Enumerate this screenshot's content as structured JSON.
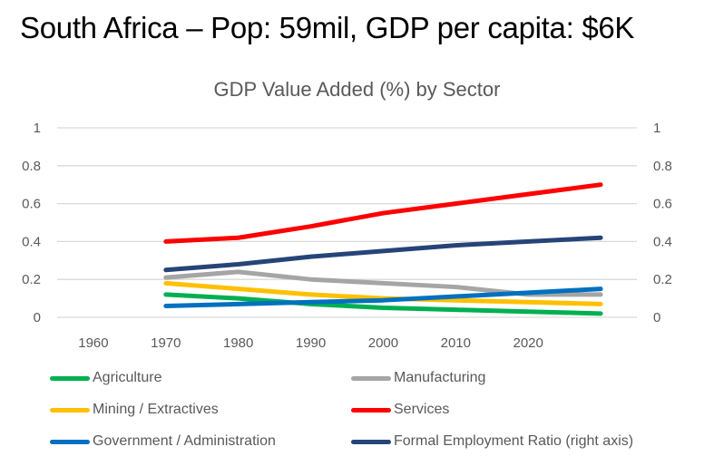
{
  "slide": {
    "title": "South Africa – Pop: 59mil, GDP per capita:  $6K"
  },
  "colors": {
    "text": "#595959",
    "grid": "#D9D9D9"
  },
  "chart_data": {
    "type": "line",
    "title": "GDP Value Added (%) by Sector",
    "xlabel": "",
    "ylabel": "",
    "categories": [
      "1960",
      "1970",
      "1980",
      "1990",
      "2000",
      "2010",
      "2020",
      ""
    ],
    "ylim": [
      0,
      1
    ],
    "y_ticks": [
      "0",
      "0.2",
      "0.4",
      "0.6",
      "0.8",
      "1"
    ],
    "y2lim": [
      0,
      1
    ],
    "y2_ticks": [
      "0",
      "0.2",
      "0.4",
      "0.6",
      "0.8",
      "1"
    ],
    "grid": true,
    "legend_position": "bottom",
    "series": [
      {
        "name": "Agriculture",
        "color": "#00B050",
        "axis": "left",
        "values": [
          null,
          0.12,
          0.1,
          0.07,
          0.05,
          0.04,
          0.03,
          0.02
        ]
      },
      {
        "name": "Manufacturing",
        "color": "#A5A5A5",
        "axis": "left",
        "values": [
          null,
          0.21,
          0.24,
          0.2,
          0.18,
          0.16,
          0.12,
          0.12
        ]
      },
      {
        "name": "Mining / Extractives",
        "color": "#FFC000",
        "axis": "left",
        "values": [
          null,
          0.18,
          0.15,
          0.12,
          0.1,
          0.09,
          0.08,
          0.07
        ]
      },
      {
        "name": "Services",
        "color": "#FF0000",
        "axis": "left",
        "values": [
          null,
          0.4,
          0.42,
          0.48,
          0.55,
          0.6,
          0.65,
          0.7
        ]
      },
      {
        "name": "Government / Administration",
        "color": "#0070C0",
        "axis": "left",
        "values": [
          null,
          0.06,
          0.07,
          0.08,
          0.09,
          0.11,
          0.13,
          0.15
        ]
      },
      {
        "name": "Formal Employment Ratio (right axis)",
        "color": "#264478",
        "axis": "right",
        "values": [
          null,
          0.25,
          0.28,
          0.32,
          0.35,
          0.38,
          0.4,
          0.42
        ]
      }
    ]
  }
}
